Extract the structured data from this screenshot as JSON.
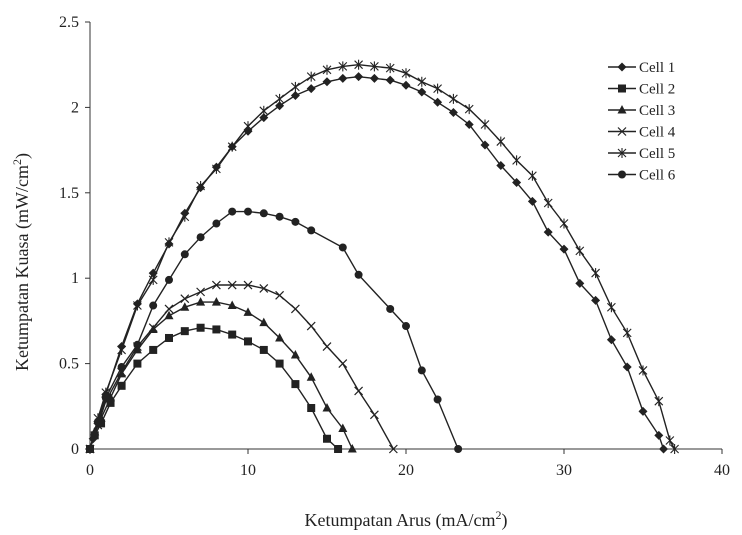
{
  "chart_data": {
    "type": "line",
    "xlabel": "Ketumpatan Arus (mA/cm",
    "xlabel_sup": "2",
    "xlabel_end": ")",
    "ylabel": "Ketumpatan Kuasa (mW/cm",
    "ylabel_sup": "2",
    "ylabel_end": ")",
    "xlim": [
      0,
      40
    ],
    "ylim": [
      0,
      2.5
    ],
    "xticks": [
      0,
      10,
      20,
      30,
      40
    ],
    "yticks": [
      0,
      0.5,
      1,
      1.5,
      2,
      2.5
    ],
    "xtick_labels": [
      "0",
      "10",
      "20",
      "30",
      "40"
    ],
    "ytick_labels": [
      "0",
      "0.5",
      "1",
      "1.5",
      "2",
      "2.5"
    ],
    "grid": false,
    "legend_position": "top-right",
    "series": [
      {
        "name": "Cell 1",
        "marker": "diamond",
        "points": [
          [
            0,
            0
          ],
          [
            0.2,
            0.06
          ],
          [
            0.5,
            0.15
          ],
          [
            1,
            0.32
          ],
          [
            2,
            0.6
          ],
          [
            3,
            0.85
          ],
          [
            4,
            1.03
          ],
          [
            5,
            1.2
          ],
          [
            6,
            1.38
          ],
          [
            7,
            1.53
          ],
          [
            8,
            1.65
          ],
          [
            9,
            1.77
          ],
          [
            10,
            1.86
          ],
          [
            11,
            1.94
          ],
          [
            12,
            2.01
          ],
          [
            13,
            2.07
          ],
          [
            14,
            2.11
          ],
          [
            15,
            2.15
          ],
          [
            16,
            2.17
          ],
          [
            17,
            2.18
          ],
          [
            18,
            2.17
          ],
          [
            19,
            2.16
          ],
          [
            20,
            2.13
          ],
          [
            21,
            2.09
          ],
          [
            22,
            2.03
          ],
          [
            23,
            1.97
          ],
          [
            24,
            1.9
          ],
          [
            25,
            1.78
          ],
          [
            26,
            1.66
          ],
          [
            27,
            1.56
          ],
          [
            28,
            1.45
          ],
          [
            29,
            1.27
          ],
          [
            30,
            1.17
          ],
          [
            31,
            0.97
          ],
          [
            32,
            0.87
          ],
          [
            33,
            0.64
          ],
          [
            34,
            0.48
          ],
          [
            35,
            0.22
          ],
          [
            36,
            0.08
          ],
          [
            36.3,
            0
          ]
        ]
      },
      {
        "name": "Cell 2",
        "marker": "square",
        "points": [
          [
            0,
            0
          ],
          [
            0.3,
            0.08
          ],
          [
            0.7,
            0.15
          ],
          [
            1.3,
            0.27
          ],
          [
            2,
            0.37
          ],
          [
            3,
            0.5
          ],
          [
            4,
            0.58
          ],
          [
            5,
            0.65
          ],
          [
            6,
            0.69
          ],
          [
            7,
            0.71
          ],
          [
            8,
            0.7
          ],
          [
            9,
            0.67
          ],
          [
            10,
            0.63
          ],
          [
            11,
            0.58
          ],
          [
            12,
            0.5
          ],
          [
            13,
            0.38
          ],
          [
            14,
            0.24
          ],
          [
            15,
            0.06
          ],
          [
            15.7,
            0
          ]
        ]
      },
      {
        "name": "Cell 3",
        "marker": "triangle",
        "points": [
          [
            0,
            0
          ],
          [
            0.3,
            0.1
          ],
          [
            0.7,
            0.18
          ],
          [
            1.3,
            0.3
          ],
          [
            2,
            0.44
          ],
          [
            3,
            0.58
          ],
          [
            4,
            0.7
          ],
          [
            5,
            0.78
          ],
          [
            6,
            0.83
          ],
          [
            7,
            0.86
          ],
          [
            8,
            0.86
          ],
          [
            9,
            0.84
          ],
          [
            10,
            0.8
          ],
          [
            11,
            0.74
          ],
          [
            12,
            0.65
          ],
          [
            13,
            0.55
          ],
          [
            14,
            0.42
          ],
          [
            15,
            0.24
          ],
          [
            16,
            0.12
          ],
          [
            16.6,
            0
          ]
        ]
      },
      {
        "name": "Cell 4",
        "marker": "x",
        "points": [
          [
            0,
            0
          ],
          [
            0.5,
            0.14
          ],
          [
            1,
            0.28
          ],
          [
            2,
            0.45
          ],
          [
            3,
            0.6
          ],
          [
            4,
            0.71
          ],
          [
            5,
            0.82
          ],
          [
            6,
            0.88
          ],
          [
            7,
            0.92
          ],
          [
            8,
            0.96
          ],
          [
            9,
            0.96
          ],
          [
            10,
            0.96
          ],
          [
            11,
            0.94
          ],
          [
            12,
            0.9
          ],
          [
            13,
            0.82
          ],
          [
            14,
            0.72
          ],
          [
            15,
            0.6
          ],
          [
            16,
            0.5
          ],
          [
            17,
            0.34
          ],
          [
            18,
            0.2
          ],
          [
            19.2,
            0
          ]
        ]
      },
      {
        "name": "Cell 5",
        "marker": "star",
        "points": [
          [
            0,
            0
          ],
          [
            0.5,
            0.18
          ],
          [
            1,
            0.33
          ],
          [
            2,
            0.58
          ],
          [
            3,
            0.84
          ],
          [
            4,
            0.99
          ],
          [
            5,
            1.21
          ],
          [
            6,
            1.36
          ],
          [
            7,
            1.54
          ],
          [
            8,
            1.64
          ],
          [
            9,
            1.77
          ],
          [
            10,
            1.89
          ],
          [
            11,
            1.98
          ],
          [
            12,
            2.05
          ],
          [
            13,
            2.12
          ],
          [
            14,
            2.18
          ],
          [
            15,
            2.22
          ],
          [
            16,
            2.24
          ],
          [
            17,
            2.25
          ],
          [
            18,
            2.24
          ],
          [
            19,
            2.23
          ],
          [
            20,
            2.2
          ],
          [
            21,
            2.15
          ],
          [
            22,
            2.11
          ],
          [
            23,
            2.05
          ],
          [
            24,
            1.99
          ],
          [
            25,
            1.9
          ],
          [
            26,
            1.8
          ],
          [
            27,
            1.69
          ],
          [
            28,
            1.6
          ],
          [
            29,
            1.44
          ],
          [
            30,
            1.32
          ],
          [
            31,
            1.16
          ],
          [
            32,
            1.03
          ],
          [
            33,
            0.83
          ],
          [
            34,
            0.68
          ],
          [
            35,
            0.46
          ],
          [
            36,
            0.28
          ],
          [
            36.7,
            0.05
          ],
          [
            37,
            0
          ]
        ]
      },
      {
        "name": "Cell 6",
        "marker": "circle",
        "points": [
          [
            0,
            0
          ],
          [
            0.5,
            0.16
          ],
          [
            1,
            0.3
          ],
          [
            2,
            0.48
          ],
          [
            3,
            0.61
          ],
          [
            4,
            0.84
          ],
          [
            5,
            0.99
          ],
          [
            6,
            1.14
          ],
          [
            7,
            1.24
          ],
          [
            8,
            1.32
          ],
          [
            9,
            1.39
          ],
          [
            10,
            1.39
          ],
          [
            11,
            1.38
          ],
          [
            12,
            1.36
          ],
          [
            13,
            1.33
          ],
          [
            14,
            1.28
          ],
          [
            16,
            1.18
          ],
          [
            17,
            1.02
          ],
          [
            19,
            0.82
          ],
          [
            20,
            0.72
          ],
          [
            21,
            0.46
          ],
          [
            22,
            0.29
          ],
          [
            23.3,
            0
          ]
        ]
      }
    ]
  }
}
